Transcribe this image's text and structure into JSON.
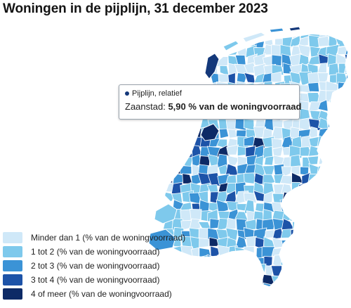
{
  "title": "Woningen in de pijplijn, 31 december 2023",
  "tooltip": {
    "series_label": "Pijplijn, relatief",
    "region": "Zaanstad",
    "value": "5,90 % van de woningvoorraad",
    "dot_color": "#14387a"
  },
  "legend": [
    {
      "label": "Minder dan 1 (% van de woningvoorraad)",
      "color": "#cfe8f8"
    },
    {
      "label": "1 tot 2 (% van de woningvoorraad)",
      "color": "#7ec9ec"
    },
    {
      "label": "2 tot 3 (% van de woningvoorraad)",
      "color": "#3b93d6"
    },
    {
      "label": "3 tot 4 (% van de woningvoorraad)",
      "color": "#1d53a8"
    },
    {
      "label": "4 of meer (% van de woningvoorraad)",
      "color": "#0d2a66"
    }
  ],
  "map": {
    "highlighted_region": "Zaanstad",
    "border_color": "#ffffff"
  }
}
